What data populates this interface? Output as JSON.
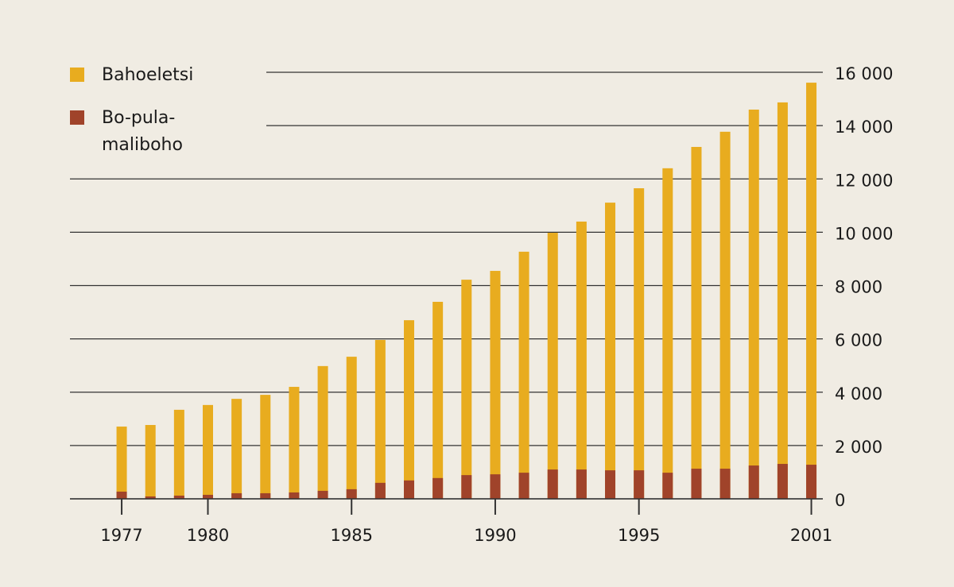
{
  "chart_data": {
    "type": "bar",
    "x": [
      1977,
      1978,
      1979,
      1980,
      1981,
      1982,
      1983,
      1984,
      1985,
      1986,
      1987,
      1988,
      1989,
      1990,
      1991,
      1992,
      1993,
      1994,
      1995,
      1996,
      1997,
      1998,
      1999,
      2000,
      2001
    ],
    "series": [
      {
        "name": "Bahoeletsi",
        "color": "#e8ac1f",
        "values": [
          2710,
          2770,
          3340,
          3520,
          3750,
          3900,
          4200,
          4980,
          5330,
          5960,
          6700,
          7390,
          8220,
          8550,
          9270,
          9980,
          10400,
          11110,
          11650,
          12400,
          13200,
          13770,
          14600,
          14870,
          15610
        ]
      },
      {
        "name": "Bo-pula-maliboho",
        "color": "#a0432a",
        "values": [
          270,
          90,
          120,
          150,
          210,
          210,
          240,
          300,
          360,
          600,
          690,
          780,
          890,
          920,
          980,
          1100,
          1100,
          1070,
          1070,
          980,
          1130,
          1130,
          1250,
          1310,
          1280
        ]
      }
    ],
    "xlim": [
      1975.2,
      2001.4
    ],
    "xticks": [
      1977,
      1980,
      1985,
      1990,
      1995,
      2001
    ],
    "ylim": [
      0,
      16000
    ],
    "yticks": [
      0,
      {
        "value": 2000,
        "label": "2 000"
      },
      {
        "value": 4000,
        "label": "4 000"
      },
      {
        "value": 6000,
        "label": "6 000"
      },
      {
        "value": 8000,
        "label": "8 000"
      },
      {
        "value": 10000,
        "label": "10 000"
      },
      {
        "value": 12000,
        "label": "12 000"
      },
      {
        "value": 14000,
        "label": "14 000"
      },
      {
        "value": 16000,
        "label": "16 000"
      }
    ],
    "grid": true
  }
}
